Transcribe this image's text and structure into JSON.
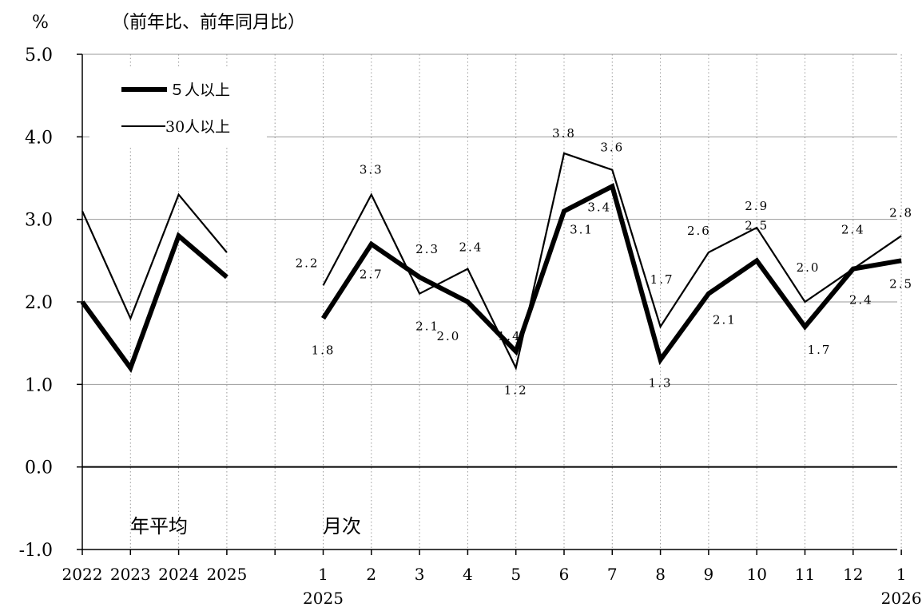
{
  "header": {
    "unit": "%",
    "subtitle": "（前年比、前年同月比）"
  },
  "chart_data": {
    "type": "line",
    "ylim": [
      -1.0,
      5.0
    ],
    "y_ticks": [
      "5.0",
      "4.0",
      "3.0",
      "2.0",
      "1.0",
      "0.0",
      "-1.0"
    ],
    "y_tick_values": [
      5.0,
      4.0,
      3.0,
      2.0,
      1.0,
      0.0,
      -1.0
    ],
    "grid": true,
    "legend_position": "top-left",
    "categories": [
      "2022",
      "2023",
      "2024",
      "2025",
      "1",
      "2",
      "3",
      "4",
      "5",
      "6",
      "7",
      "8",
      "9",
      "10",
      "11",
      "12",
      "1"
    ],
    "secondary_labels": [
      {
        "under": 4,
        "text": "2025"
      },
      {
        "under": 16,
        "text": "2026"
      }
    ],
    "section_labels": {
      "annual": "年平均",
      "monthly": "月次"
    },
    "series": [
      {
        "name": "５人以上",
        "style": "thick",
        "color": "#000000",
        "annual": [
          2.0,
          1.2,
          2.8,
          2.3
        ],
        "monthly": [
          1.8,
          2.7,
          2.3,
          2.0,
          1.4,
          3.1,
          3.4,
          1.3,
          2.1,
          2.5,
          1.7,
          2.4,
          2.5
        ],
        "monthly_labels": [
          "1.8",
          "2.7",
          "2.3",
          "2.0",
          "1.4",
          "3.1",
          "3.4",
          "1.3",
          "2.1",
          "2.5",
          "1.7",
          "2.4",
          "2.5"
        ]
      },
      {
        "name": "30人以上",
        "style": "thin",
        "color": "#000000",
        "annual": [
          3.1,
          1.8,
          3.3,
          2.6
        ],
        "monthly": [
          2.2,
          3.3,
          2.1,
          2.4,
          1.2,
          3.8,
          3.6,
          1.7,
          2.6,
          2.9,
          2.0,
          2.4,
          2.8
        ],
        "monthly_labels": [
          "2.2",
          "3.3",
          "2.1",
          "2.4",
          "1.2",
          "3.8",
          "3.6",
          "1.7",
          "2.6",
          "2.9",
          "2.0",
          "2.4",
          "2.8"
        ]
      }
    ]
  }
}
